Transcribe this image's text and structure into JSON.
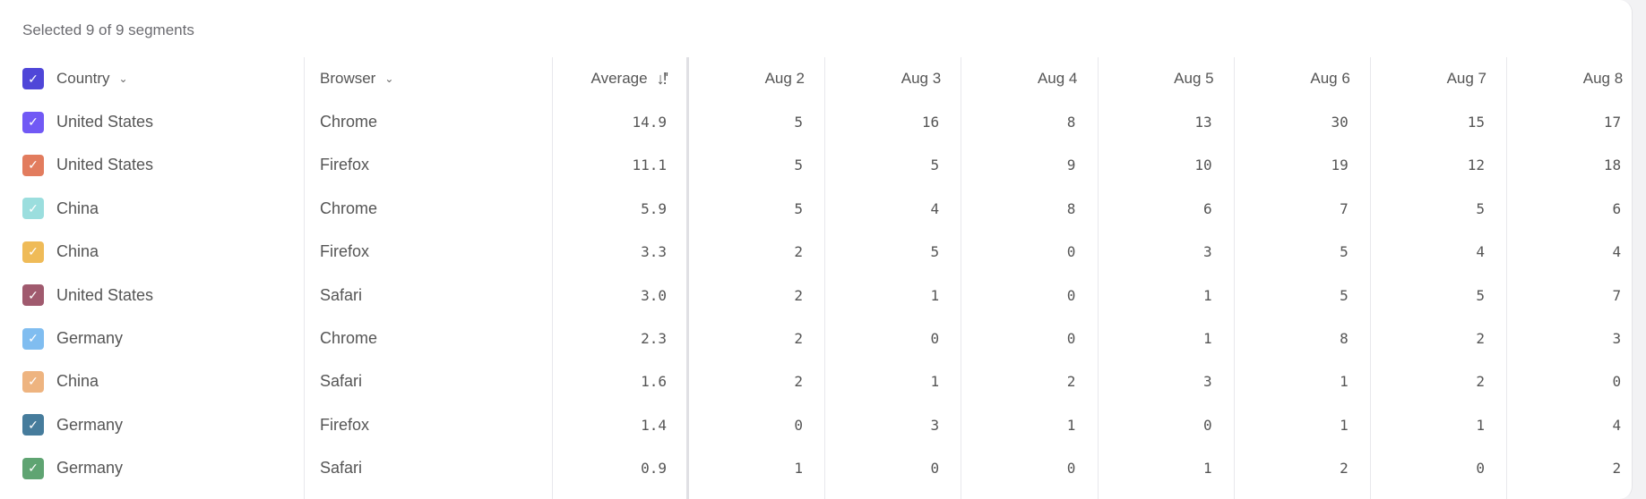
{
  "summary": "Selected 9 of 9 segments",
  "header": {
    "country": "Country",
    "browser": "Browser",
    "average": "Average",
    "header_checkbox_color": "#4f46d8",
    "dates": [
      "Aug 2",
      "Aug 3",
      "Aug 4",
      "Aug 5",
      "Aug 6",
      "Aug 7",
      "Aug 8"
    ]
  },
  "rows": [
    {
      "country": "United States",
      "browser": "Chrome",
      "color": "#7159f5",
      "average": "14.9",
      "values": [
        "5",
        "16",
        "8",
        "13",
        "30",
        "15",
        "17"
      ]
    },
    {
      "country": "United States",
      "browser": "Firefox",
      "color": "#e27c5e",
      "average": "11.1",
      "values": [
        "5",
        "5",
        "9",
        "10",
        "19",
        "12",
        "18"
      ]
    },
    {
      "country": "China",
      "browser": "Chrome",
      "color": "#9bdede",
      "average": "5.9",
      "values": [
        "5",
        "4",
        "8",
        "6",
        "7",
        "5",
        "6"
      ]
    },
    {
      "country": "China",
      "browser": "Firefox",
      "color": "#efbb58",
      "average": "3.3",
      "values": [
        "2",
        "5",
        "0",
        "3",
        "5",
        "4",
        "4"
      ]
    },
    {
      "country": "United States",
      "browser": "Safari",
      "color": "#a05a6e",
      "average": "3.0",
      "values": [
        "2",
        "1",
        "0",
        "1",
        "5",
        "5",
        "7"
      ]
    },
    {
      "country": "Germany",
      "browser": "Chrome",
      "color": "#80bdf0",
      "average": "2.3",
      "values": [
        "2",
        "0",
        "0",
        "1",
        "8",
        "2",
        "3"
      ]
    },
    {
      "country": "China",
      "browser": "Safari",
      "color": "#eeb480",
      "average": "1.6",
      "values": [
        "2",
        "1",
        "2",
        "3",
        "1",
        "2",
        "0"
      ]
    },
    {
      "country": "Germany",
      "browser": "Firefox",
      "color": "#467c9c",
      "average": "1.4",
      "values": [
        "0",
        "3",
        "1",
        "0",
        "1",
        "1",
        "4"
      ]
    },
    {
      "country": "Germany",
      "browser": "Safari",
      "color": "#5fa472",
      "average": "0.9",
      "values": [
        "1",
        "0",
        "0",
        "1",
        "2",
        "0",
        "2"
      ]
    }
  ]
}
